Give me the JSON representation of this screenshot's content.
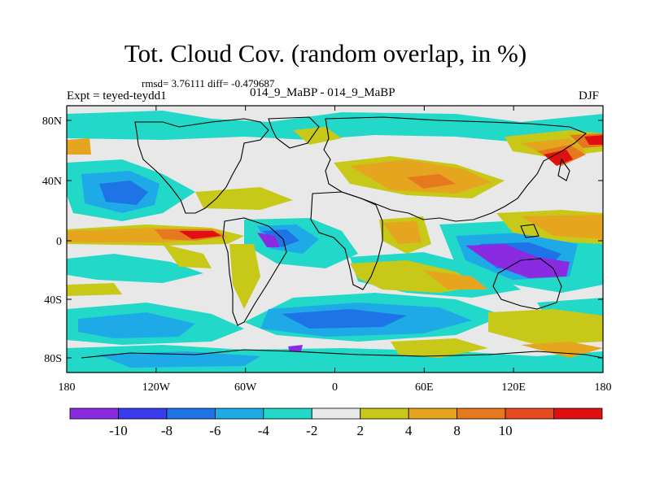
{
  "title": "Tot. Cloud Cov. (random overlap, in %)",
  "stats": "rmsd= 3.76111 diff= -0.479687",
  "expt": "Expt = teyed-teydd1",
  "pair": "014_9_MaBP - 014_9_MaBP",
  "season": "DJF",
  "map": {
    "lat_labels": [
      "80N",
      "40N",
      "0",
      "40S",
      "80S"
    ],
    "lon_labels": [
      "180",
      "120W",
      "60W",
      "0",
      "60E",
      "120E",
      "180"
    ]
  },
  "colorbar": {
    "colors": [
      "#8a2be2",
      "#3a3aee",
      "#1e74e6",
      "#1eaae6",
      "#22d8c8",
      "#e8e8e8",
      "#c8c818",
      "#e6a51e",
      "#e6781e",
      "#e64a1e",
      "#e01010"
    ],
    "labels": [
      "-10",
      "-8",
      "-6",
      "-4",
      "-2",
      "2",
      "4",
      "8",
      "10"
    ]
  }
}
